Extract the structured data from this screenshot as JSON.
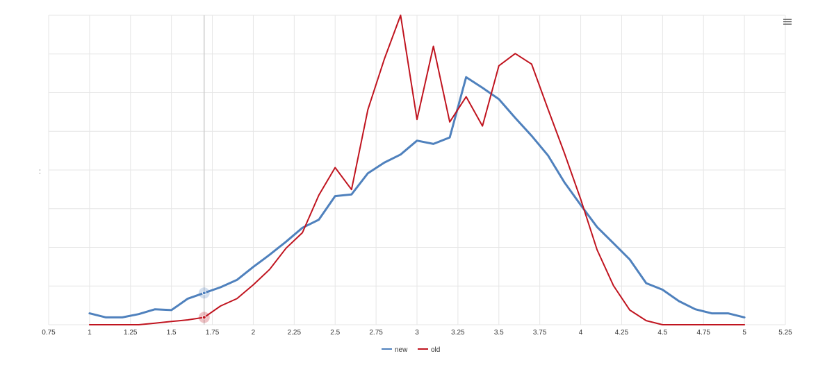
{
  "chart_data": {
    "type": "line",
    "title": "",
    "xlabel": "",
    "ylabel": "",
    "xlim": [
      0.75,
      5.25
    ],
    "ylim": [
      0,
      1.9
    ],
    "x_ticks": [
      "0.75",
      "1",
      "1.25",
      "1.5",
      "1.75",
      "2",
      "2.25",
      "2.5",
      "2.75",
      "3",
      "3.25",
      "3.5",
      "3.75",
      "4",
      "4.25",
      "4.5",
      "4.75",
      "5",
      "5.25"
    ],
    "grid": true,
    "legend_position": "bottom-center",
    "series": [
      {
        "name": "new",
        "color": "#4f81bd",
        "x": [
          1.0,
          1.1,
          1.2,
          1.3,
          1.4,
          1.5,
          1.6,
          1.7,
          1.8,
          1.9,
          2.0,
          2.1,
          2.2,
          2.3,
          2.4,
          2.5,
          2.6,
          2.7,
          2.8,
          2.9,
          3.0,
          3.1,
          3.2,
          3.3,
          3.4,
          3.5,
          3.6,
          3.7,
          3.8,
          3.9,
          4.0,
          4.1,
          4.2,
          4.3,
          4.4,
          4.5,
          4.6,
          4.7,
          4.8,
          4.9,
          5.0
        ],
        "y": [
          0.07,
          0.045,
          0.045,
          0.065,
          0.095,
          0.09,
          0.16,
          0.195,
          0.23,
          0.275,
          0.355,
          0.43,
          0.51,
          0.595,
          0.645,
          0.79,
          0.8,
          0.93,
          0.995,
          1.045,
          1.13,
          1.11,
          1.15,
          1.52,
          1.455,
          1.385,
          1.27,
          1.16,
          1.04,
          0.875,
          0.735,
          0.6,
          0.5,
          0.4,
          0.255,
          0.215,
          0.145,
          0.095,
          0.07,
          0.07,
          0.045
        ]
      },
      {
        "name": "old",
        "color": "#c0141f",
        "x": [
          1.0,
          1.1,
          1.2,
          1.3,
          1.4,
          1.5,
          1.6,
          1.7,
          1.8,
          1.9,
          2.0,
          2.1,
          2.2,
          2.3,
          2.4,
          2.5,
          2.6,
          2.7,
          2.8,
          2.9,
          3.0,
          3.1,
          3.2,
          3.3,
          3.4,
          3.5,
          3.6,
          3.7,
          3.8,
          3.9,
          4.0,
          4.1,
          4.2,
          4.3,
          4.4,
          4.5,
          4.6,
          4.7,
          4.8,
          4.9,
          5.0
        ],
        "y": [
          0.0,
          0.0,
          0.0,
          0.0,
          0.01,
          0.02,
          0.03,
          0.045,
          0.115,
          0.16,
          0.245,
          0.34,
          0.47,
          0.565,
          0.795,
          0.965,
          0.83,
          1.32,
          1.63,
          1.9,
          1.26,
          1.71,
          1.245,
          1.4,
          1.22,
          1.59,
          1.665,
          1.6,
          1.325,
          1.055,
          0.77,
          0.46,
          0.24,
          0.09,
          0.025,
          0.0,
          0.0,
          0.0,
          0.0,
          0.0,
          0.0
        ]
      }
    ],
    "crosshair_x": 1.7
  },
  "toolbar": {
    "menu_icon": "hamburger-menu-icon"
  },
  "axis_artifact": ":"
}
